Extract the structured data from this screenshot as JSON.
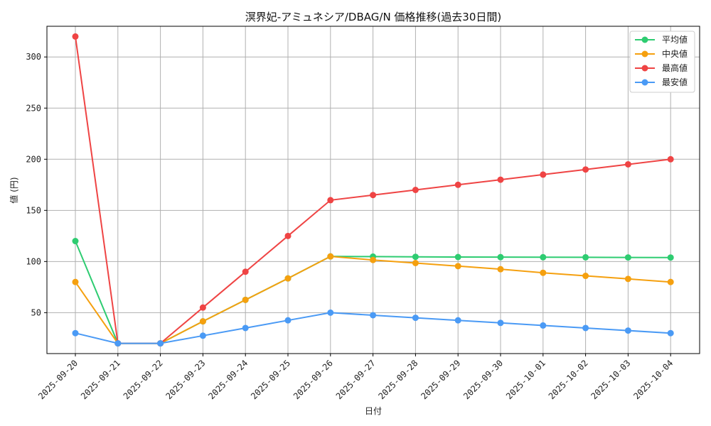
{
  "chart_data": {
    "type": "line",
    "title": "溟界妃-アミュネシア/DBAG/N 価格推移(過去30日間)",
    "xlabel": "日付",
    "ylabel": "値 (円)",
    "ylim": [
      10,
      330
    ],
    "yticks": [
      50,
      100,
      150,
      200,
      250,
      300
    ],
    "grid": true,
    "legend_position": "top-right",
    "categories": [
      "2025-09-20",
      "2025-09-21",
      "2025-09-22",
      "2025-09-23",
      "2025-09-24",
      "2025-09-25",
      "2025-09-26",
      "2025-09-27",
      "2025-09-28",
      "2025-09-29",
      "2025-09-30",
      "2025-10-01",
      "2025-10-02",
      "2025-10-03",
      "2025-10-04"
    ],
    "series": [
      {
        "name": "平均値",
        "color": "#2ecc71",
        "values": [
          120,
          20,
          20,
          41.5,
          62.5,
          83.5,
          105,
          104.8,
          104.6,
          104.4,
          104.3,
          104.2,
          104.1,
          104,
          103.9
        ]
      },
      {
        "name": "中央値",
        "color": "#f5a00f",
        "values": [
          80,
          20,
          20,
          41.5,
          62.5,
          83.5,
          105,
          101.5,
          98.5,
          95.5,
          92.5,
          89,
          86,
          83,
          80
        ]
      },
      {
        "name": "最高値",
        "color": "#ef4444",
        "values": [
          320,
          20,
          20,
          55,
          90,
          125,
          160,
          165,
          170,
          175,
          180,
          185,
          190,
          195,
          200
        ]
      },
      {
        "name": "最安値",
        "color": "#4a9af5",
        "values": [
          30,
          20,
          20,
          27.5,
          35,
          42.5,
          50,
          47.5,
          45,
          42.5,
          40,
          37.5,
          35,
          32.5,
          30
        ]
      }
    ]
  }
}
